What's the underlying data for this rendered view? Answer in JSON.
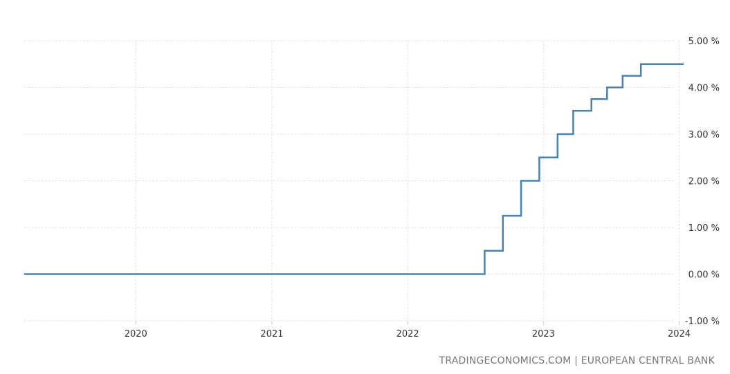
{
  "chart_data": {
    "type": "line",
    "step": true,
    "title": "",
    "xlabel": "",
    "ylabel": "",
    "ylim": [
      -1.0,
      5.0
    ],
    "xlim": [
      "2019-03-07",
      "2024-01-13"
    ],
    "yticks": [
      5.0,
      4.0,
      3.0,
      2.0,
      1.0,
      0.0,
      -1.0
    ],
    "ytick_labels": [
      "5.00 %",
      "4.00 %",
      "3.00 %",
      "2.00 %",
      "1.00 %",
      "0.00 %",
      "-1.00 %"
    ],
    "xticks": [
      "2020-01-01",
      "2021-01-01",
      "2022-01-01",
      "2023-01-01",
      "2024-01-01"
    ],
    "xtick_labels": [
      "2020",
      "2021",
      "2022",
      "2023",
      "2024"
    ],
    "grid": true,
    "series": [
      {
        "color": "#4682b4",
        "x": [
          "2019-03-07",
          "2022-07-27",
          "2022-09-14",
          "2022-11-02",
          "2022-12-21",
          "2023-02-08",
          "2023-03-22",
          "2023-05-10",
          "2023-06-21",
          "2023-08-02",
          "2023-09-20",
          "2024-01-13"
        ],
        "y": [
          0.0,
          0.5,
          1.25,
          2.0,
          2.5,
          3.0,
          3.5,
          3.75,
          4.0,
          4.25,
          4.5,
          4.5
        ]
      }
    ]
  },
  "source_text": "TRADINGECONOMICS.COM | EUROPEAN CENTRAL BANK"
}
